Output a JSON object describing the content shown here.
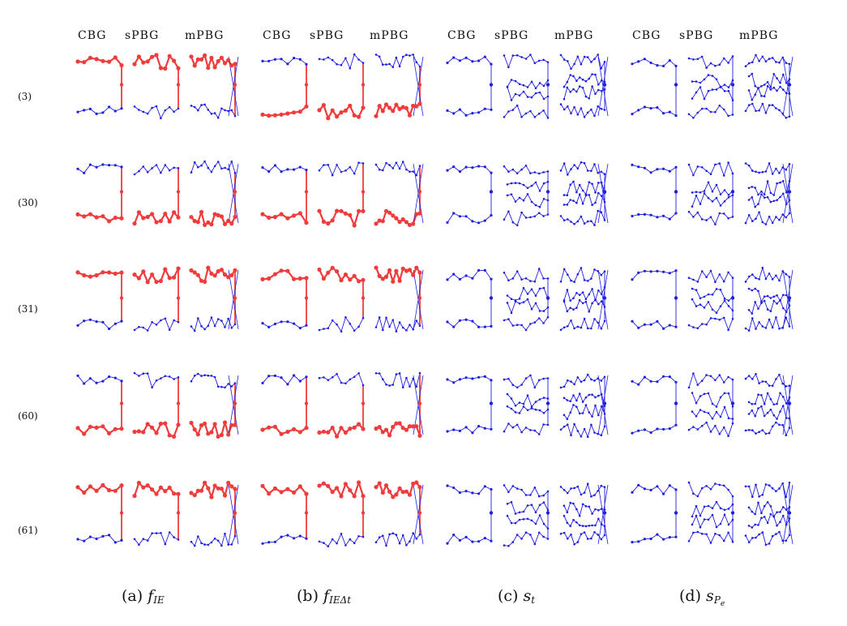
{
  "graph_labels": [
    "CBG",
    "sPBG",
    "mPBG"
  ],
  "rows": [
    "(3)",
    "(30)",
    "(31)",
    "(60)",
    "(61)"
  ],
  "captions": [
    {
      "prefix": "(a)",
      "main": "f",
      "sub": "IE",
      "subsub": ""
    },
    {
      "prefix": "(b)",
      "main": "f",
      "sub": "IEΔt",
      "subsub": ""
    },
    {
      "prefix": "(c)",
      "main": "s",
      "sub": "t",
      "subsub": ""
    },
    {
      "prefix": "(d)",
      "main": "s",
      "sub": "P",
      "subsub": "e"
    }
  ],
  "colors": {
    "base_edge": "#1f1fe0",
    "highlight": "#f03c3c",
    "text": "#111111"
  },
  "highlight_pattern": [
    [
      "top",
      "top",
      "top",
      "bottom",
      "bottom",
      "bottom",
      "none",
      "none",
      "none"
    ],
    [
      "bottom",
      "bottom",
      "bottom",
      "bottom",
      "bottom",
      "bottom",
      "none",
      "none",
      "none"
    ],
    [
      "top",
      "top",
      "top",
      "top",
      "top",
      "top",
      "none",
      "none",
      "none"
    ],
    [
      "bottom",
      "bottom",
      "bottom",
      "bottom",
      "bottom",
      "bottom",
      "none",
      "none",
      "none"
    ],
    [
      "top",
      "top",
      "top",
      "top",
      "top",
      "top",
      "none",
      "none",
      "none"
    ]
  ]
}
